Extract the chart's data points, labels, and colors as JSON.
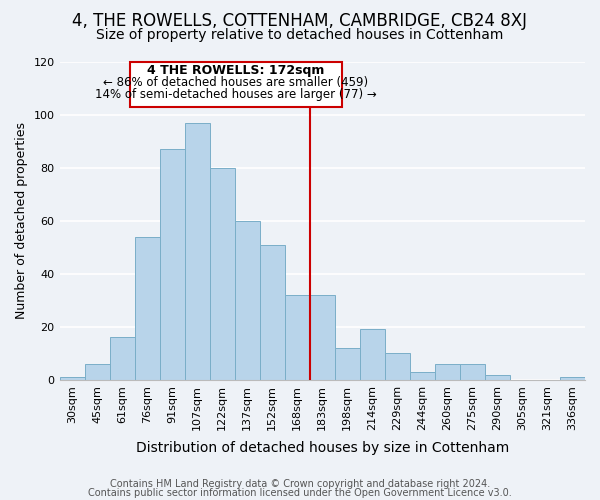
{
  "title": "4, THE ROWELLS, COTTENHAM, CAMBRIDGE, CB24 8XJ",
  "subtitle": "Size of property relative to detached houses in Cottenham",
  "xlabel": "Distribution of detached houses by size in Cottenham",
  "ylabel": "Number of detached properties",
  "bar_labels": [
    "30sqm",
    "45sqm",
    "61sqm",
    "76sqm",
    "91sqm",
    "107sqm",
    "122sqm",
    "137sqm",
    "152sqm",
    "168sqm",
    "183sqm",
    "198sqm",
    "214sqm",
    "229sqm",
    "244sqm",
    "260sqm",
    "275sqm",
    "290sqm",
    "305sqm",
    "321sqm",
    "336sqm"
  ],
  "bar_heights": [
    1,
    6,
    16,
    54,
    87,
    97,
    80,
    60,
    51,
    32,
    32,
    12,
    19,
    10,
    3,
    6,
    6,
    2,
    0,
    0,
    1
  ],
  "bar_color": "#b8d4ea",
  "bar_edge_color": "#7aaec8",
  "background_color": "#eef2f7",
  "grid_color": "#ffffff",
  "vline_color": "#cc0000",
  "annotation_title": "4 THE ROWELLS: 172sqm",
  "annotation_line1": "← 86% of detached houses are smaller (459)",
  "annotation_line2": "14% of semi-detached houses are larger (77) →",
  "annotation_box_edge": "#cc0000",
  "annotation_box_face": "#ffffff",
  "ylim": [
    0,
    120
  ],
  "yticks": [
    0,
    20,
    40,
    60,
    80,
    100,
    120
  ],
  "footer1": "Contains HM Land Registry data © Crown copyright and database right 2024.",
  "footer2": "Contains public sector information licensed under the Open Government Licence v3.0.",
  "title_fontsize": 12,
  "subtitle_fontsize": 10,
  "xlabel_fontsize": 10,
  "ylabel_fontsize": 9,
  "tick_fontsize": 8,
  "annotation_title_fontsize": 9,
  "annotation_text_fontsize": 8.5,
  "footer_fontsize": 7
}
